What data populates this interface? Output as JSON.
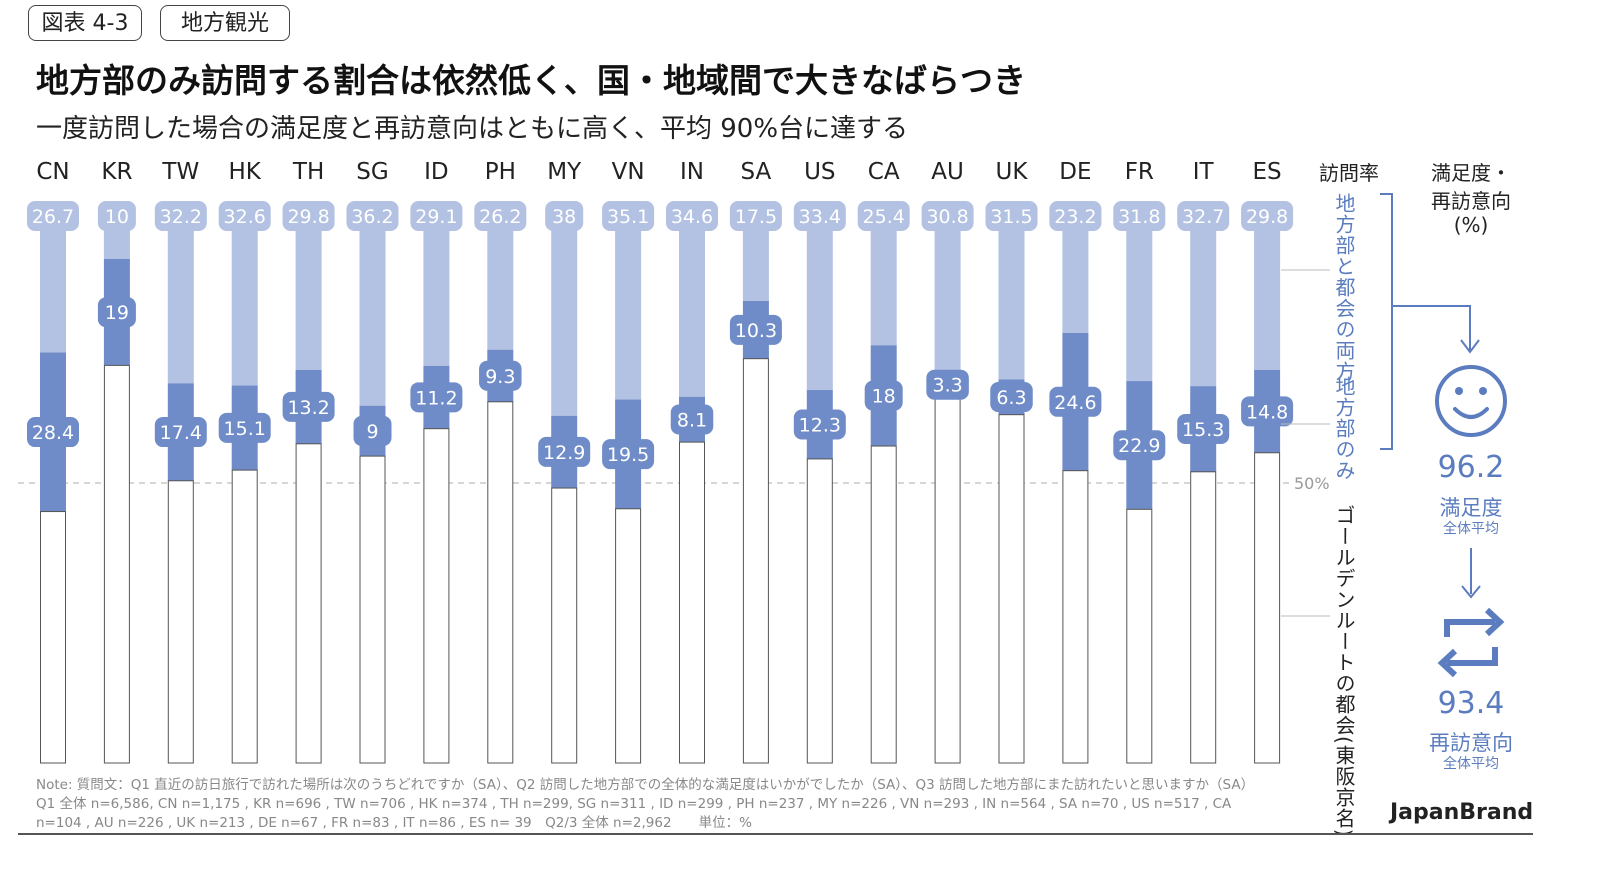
{
  "header": {
    "figure_tag": "図表 4-3",
    "category_tag": "地方観光",
    "title": "地方部のみ訪問する割合は依然低く、国・地域間で大きなばらつき",
    "subtitle": "一度訪問した場合の満足度と再訪意向はともに高く、平均 90%台に達する"
  },
  "chart_data": {
    "type": "bar",
    "stacked": true,
    "categories": [
      "CN",
      "KR",
      "TW",
      "HK",
      "TH",
      "SG",
      "ID",
      "PH",
      "MY",
      "VN",
      "IN",
      "SA",
      "US",
      "CA",
      "AU",
      "UK",
      "DE",
      "FR",
      "IT",
      "ES"
    ],
    "series": [
      {
        "name": "地方部と都会の両方",
        "values": [
          26.7,
          10,
          32.2,
          32.6,
          29.8,
          36.2,
          29.1,
          26.2,
          38,
          35.1,
          34.6,
          17.5,
          33.4,
          25.4,
          30.8,
          31.5,
          23.2,
          31.8,
          32.7,
          29.8
        ]
      },
      {
        "name": "地方部のみ",
        "values": [
          28.4,
          19,
          17.4,
          15.1,
          13.2,
          9,
          11.2,
          9.3,
          12.9,
          19.5,
          8.1,
          10.3,
          12.3,
          18,
          3.3,
          6.3,
          24.6,
          22.9,
          15.3,
          14.8
        ]
      },
      {
        "name": "ゴールデンルートの都会(東阪京名)",
        "values": [
          44.9,
          71,
          50.4,
          52.3,
          57,
          54.8,
          59.7,
          64.5,
          49.1,
          45.4,
          57.3,
          72.2,
          54.3,
          56.6,
          65.9,
          62.2,
          52.2,
          45.3,
          52,
          55.4
        ]
      }
    ],
    "reference_line": {
      "value": 50,
      "label": "50%"
    },
    "column_header": "訪問率",
    "ylim": [
      0,
      100
    ],
    "colors": {
      "both": "#b3c1e2",
      "rural_only": "#6f8cc8",
      "urban": "#ffffff",
      "accent": "#5b7dbf"
    }
  },
  "side_panel": {
    "header_line1": "満足度・",
    "header_line2": "再訪意向",
    "header_unit": "(%)",
    "icons": [
      "smiley-icon",
      "repeat-icon"
    ],
    "satisfaction": {
      "value": "96.2",
      "label": "満足度",
      "sublabel": "全体平均"
    },
    "revisit": {
      "value": "93.4",
      "label": "再訪意向",
      "sublabel": "全体平均"
    }
  },
  "footer": {
    "note": "Note: 質問文：Q1 直近の訪日旅行で訪れた場所は次のうちどれですか（SA）、Q2 訪問した地方部での全体的な満足度はいかがでしたか（SA）、Q3 訪問した地方部にまた訪れたいと思いますか（SA）　Q1 全体 n=6,586, CN n=1,175 , KR n=696 , TW n=706 , HK n=374 , TH n=299, SG n=311 , ID n=299 , PH n=237 , MY n=226 , VN n=293 , IN n=564 , SA n=70 , US n=517 , CA n=104 , AU n=226 , UK n=213 , DE n=67 , FR n=83 , IT n=86 , ES n= 39　Q2/3 全体 n=2,962　　単位：%",
    "brand": "JapanBrand"
  }
}
